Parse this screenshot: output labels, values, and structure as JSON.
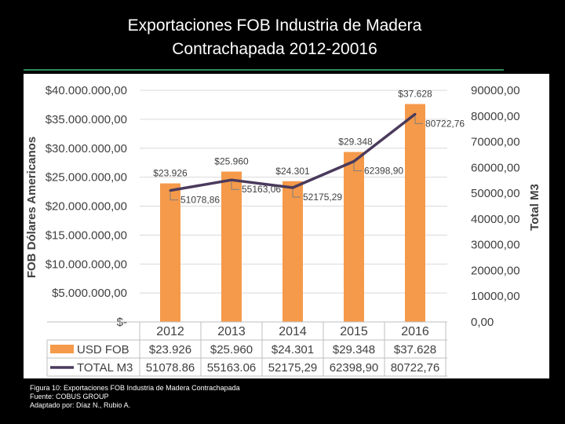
{
  "slide": {
    "title_line1": "Exportaciones FOB Industria de Madera",
    "title_line2": "Contrachapada 2012-20016"
  },
  "caption": {
    "line1": "Figura 10: Exportaciones FOB Industria de Madera Contrachapada",
    "line2": "Fuente: COBUS GROUP",
    "line3": "Adaptado por: Díaz N., Rubio A."
  },
  "chart_data": {
    "type": "bar",
    "categories": [
      "2012",
      "2013",
      "2014",
      "2015",
      "2016"
    ],
    "series": [
      {
        "name": "USD FOB",
        "kind": "bar",
        "axis": "left",
        "color": "#f59a4a",
        "values": [
          23926,
          25960,
          24301,
          29348,
          37628
        ],
        "labels": [
          "$23.926",
          "$25.960",
          "$24.301",
          "$29.348",
          "$37.628"
        ]
      },
      {
        "name": "TOTAL M3",
        "kind": "line",
        "axis": "right",
        "color": "#4a3a5c",
        "values": [
          51078.86,
          55163.06,
          52175.29,
          62398.9,
          80722.76
        ],
        "labels": [
          "51078,86",
          "55163,06",
          "52175,29",
          "62398,90",
          "80722,76"
        ]
      }
    ],
    "y_left": {
      "label": "FOB Dólares Americanos",
      "range": [
        0,
        40000
      ],
      "ticks": [
        "$-",
        "$5.000.000,00",
        "$10.000.000,00",
        "$15.000.000,00",
        "$20.000.000,00",
        "$25.000.000,00",
        "$30.000.000,00",
        "$35.000.000,00",
        "$40.000.000,00"
      ]
    },
    "y_right": {
      "label": "Total M3",
      "range": [
        0,
        90000
      ],
      "ticks": [
        "0,00",
        "10000,00",
        "20000,00",
        "30000,00",
        "40000,00",
        "50000,00",
        "60000,00",
        "70000,00",
        "80000,00",
        "90000,00"
      ]
    },
    "data_table": {
      "rows": [
        {
          "name": "USD FOB",
          "values": [
            "$23.926",
            "$25.960",
            "$24.301",
            "$29.348",
            "$37.628"
          ]
        },
        {
          "name": "TOTAL M3",
          "values": [
            "51078.86",
            "55163.06",
            "52175,29",
            "62398,90",
            "80722,76"
          ]
        }
      ]
    },
    "grid": true,
    "legend": "data-table"
  }
}
